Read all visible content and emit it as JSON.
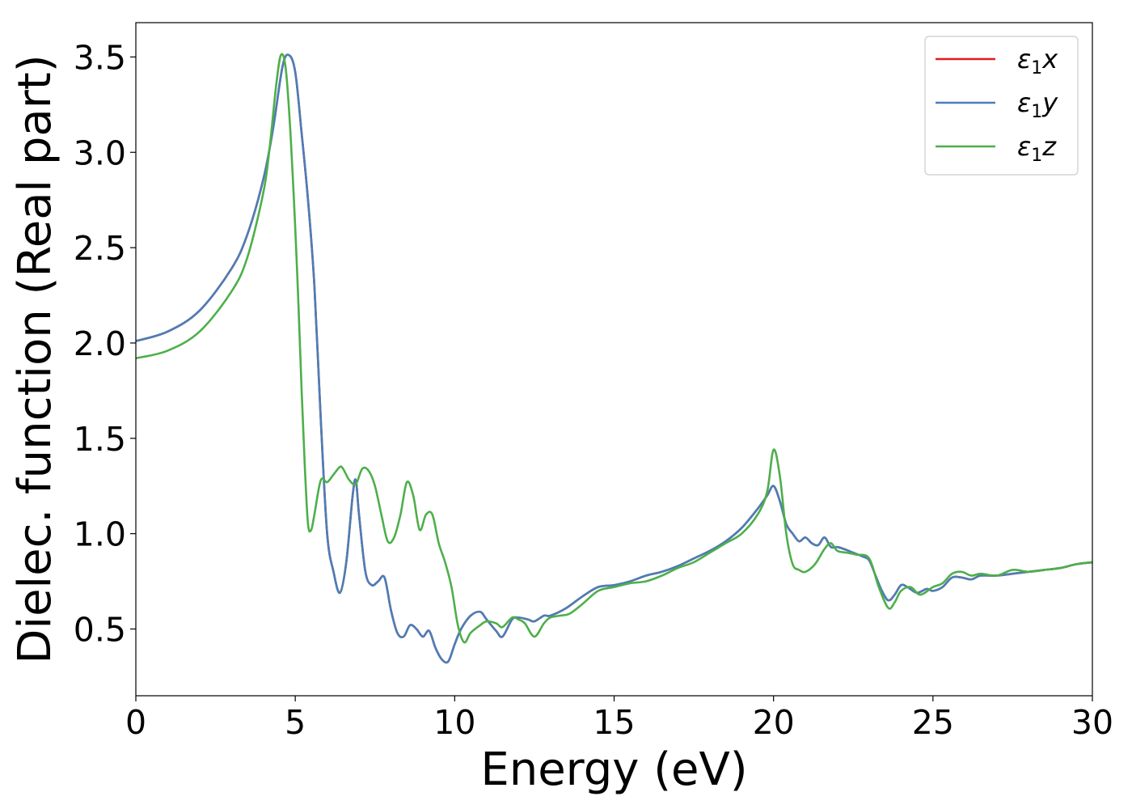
{
  "chart_data": {
    "type": "line",
    "title": "",
    "xlabel": "Energy (eV)",
    "ylabel": "Dielec. function (Real part)",
    "xlim": [
      0,
      30
    ],
    "ylim": [
      0.15,
      3.68
    ],
    "xticks": [
      0,
      5,
      10,
      15,
      20,
      25,
      30
    ],
    "yticks": [
      0.5,
      1.0,
      1.5,
      2.0,
      2.5,
      3.0,
      3.5
    ],
    "xtick_labels": [
      "0",
      "5",
      "10",
      "15",
      "20",
      "25",
      "30"
    ],
    "ytick_labels": [
      "0.5",
      "1.0",
      "1.5",
      "2.0",
      "2.5",
      "3.0",
      "3.5"
    ],
    "grid": false,
    "legend_position": "top-right",
    "series": [
      {
        "name": "ε1x",
        "legend_main": "ε",
        "legend_sub": "1",
        "legend_var": "x",
        "color": "#e41a1c",
        "x": [
          0,
          1,
          2,
          3,
          3.5,
          4,
          4.3,
          4.6,
          4.8,
          5.0,
          5.2,
          5.4,
          5.6,
          5.8,
          6.0,
          6.2,
          6.4,
          6.6,
          6.8,
          6.9,
          7.0,
          7.2,
          7.4,
          7.6,
          7.8,
          8.0,
          8.2,
          8.4,
          8.6,
          8.8,
          9.0,
          9.2,
          9.4,
          9.6,
          9.8,
          10.0,
          10.2,
          10.5,
          10.8,
          11.0,
          11.3,
          11.5,
          11.8,
          12.0,
          12.3,
          12.5,
          12.8,
          13.0,
          13.5,
          14.0,
          14.5,
          15.0,
          15.5,
          16.0,
          16.5,
          17.0,
          17.5,
          18.0,
          18.5,
          19.0,
          19.5,
          19.8,
          20.0,
          20.2,
          20.4,
          20.6,
          20.8,
          21.0,
          21.2,
          21.4,
          21.6,
          21.8,
          22.0,
          22.2,
          22.5,
          22.8,
          23.0,
          23.2,
          23.4,
          23.6,
          23.8,
          24.0,
          24.2,
          24.5,
          24.8,
          25.0,
          25.3,
          25.6,
          25.9,
          26.2,
          26.5,
          27.0,
          27.5,
          28.0,
          28.5,
          29.0,
          29.5,
          30.0
        ],
        "y": [
          2.01,
          2.06,
          2.17,
          2.39,
          2.57,
          2.86,
          3.12,
          3.45,
          3.51,
          3.42,
          3.1,
          2.75,
          2.3,
          1.6,
          1.0,
          0.8,
          0.69,
          0.85,
          1.2,
          1.28,
          1.1,
          0.8,
          0.73,
          0.75,
          0.77,
          0.6,
          0.48,
          0.46,
          0.52,
          0.5,
          0.46,
          0.49,
          0.4,
          0.34,
          0.33,
          0.42,
          0.5,
          0.57,
          0.59,
          0.55,
          0.49,
          0.46,
          0.55,
          0.56,
          0.55,
          0.54,
          0.57,
          0.57,
          0.61,
          0.67,
          0.72,
          0.73,
          0.75,
          0.78,
          0.8,
          0.83,
          0.87,
          0.91,
          0.96,
          1.03,
          1.13,
          1.2,
          1.25,
          1.17,
          1.05,
          1.0,
          0.96,
          0.98,
          0.95,
          0.94,
          0.98,
          0.93,
          0.93,
          0.92,
          0.9,
          0.88,
          0.86,
          0.78,
          0.7,
          0.65,
          0.68,
          0.73,
          0.72,
          0.69,
          0.71,
          0.7,
          0.72,
          0.77,
          0.77,
          0.76,
          0.78,
          0.78,
          0.79,
          0.8,
          0.81,
          0.82,
          0.84,
          0.85
        ]
      },
      {
        "name": "ε1y",
        "legend_main": "ε",
        "legend_sub": "1",
        "legend_var": "y",
        "color": "#4a7eb8",
        "x": [
          0,
          1,
          2,
          3,
          3.5,
          4,
          4.3,
          4.6,
          4.8,
          5.0,
          5.2,
          5.4,
          5.6,
          5.8,
          6.0,
          6.2,
          6.4,
          6.6,
          6.8,
          6.9,
          7.0,
          7.2,
          7.4,
          7.6,
          7.8,
          8.0,
          8.2,
          8.4,
          8.6,
          8.8,
          9.0,
          9.2,
          9.4,
          9.6,
          9.8,
          10.0,
          10.2,
          10.5,
          10.8,
          11.0,
          11.3,
          11.5,
          11.8,
          12.0,
          12.3,
          12.5,
          12.8,
          13.0,
          13.5,
          14.0,
          14.5,
          15.0,
          15.5,
          16.0,
          16.5,
          17.0,
          17.5,
          18.0,
          18.5,
          19.0,
          19.5,
          19.8,
          20.0,
          20.2,
          20.4,
          20.6,
          20.8,
          21.0,
          21.2,
          21.4,
          21.6,
          21.8,
          22.0,
          22.2,
          22.5,
          22.8,
          23.0,
          23.2,
          23.4,
          23.6,
          23.8,
          24.0,
          24.2,
          24.5,
          24.8,
          25.0,
          25.3,
          25.6,
          25.9,
          26.2,
          26.5,
          27.0,
          27.5,
          28.0,
          28.5,
          29.0,
          29.5,
          30.0
        ],
        "y": [
          2.01,
          2.06,
          2.17,
          2.39,
          2.57,
          2.86,
          3.12,
          3.45,
          3.51,
          3.42,
          3.1,
          2.75,
          2.3,
          1.6,
          1.0,
          0.8,
          0.69,
          0.85,
          1.2,
          1.28,
          1.1,
          0.8,
          0.73,
          0.75,
          0.77,
          0.6,
          0.48,
          0.46,
          0.52,
          0.5,
          0.46,
          0.49,
          0.4,
          0.34,
          0.33,
          0.42,
          0.5,
          0.57,
          0.59,
          0.55,
          0.49,
          0.46,
          0.55,
          0.56,
          0.55,
          0.54,
          0.57,
          0.57,
          0.61,
          0.67,
          0.72,
          0.73,
          0.75,
          0.78,
          0.8,
          0.83,
          0.87,
          0.91,
          0.96,
          1.03,
          1.13,
          1.2,
          1.25,
          1.17,
          1.05,
          1.0,
          0.96,
          0.98,
          0.95,
          0.94,
          0.98,
          0.93,
          0.93,
          0.92,
          0.9,
          0.88,
          0.86,
          0.78,
          0.7,
          0.65,
          0.68,
          0.73,
          0.72,
          0.69,
          0.71,
          0.7,
          0.72,
          0.77,
          0.77,
          0.76,
          0.78,
          0.78,
          0.79,
          0.8,
          0.81,
          0.82,
          0.84,
          0.85
        ]
      },
      {
        "name": "ε1z",
        "legend_main": "ε",
        "legend_sub": "1",
        "legend_var": "z",
        "color": "#4daf4a",
        "x": [
          0,
          1,
          2,
          3,
          3.5,
          4,
          4.2,
          4.4,
          4.55,
          4.7,
          4.85,
          5.0,
          5.1,
          5.2,
          5.3,
          5.4,
          5.5,
          5.6,
          5.8,
          6.0,
          6.2,
          6.4,
          6.5,
          6.7,
          6.9,
          7.1,
          7.3,
          7.5,
          7.7,
          7.9,
          8.1,
          8.3,
          8.5,
          8.7,
          8.9,
          9.1,
          9.3,
          9.5,
          9.7,
          9.9,
          10.1,
          10.3,
          10.5,
          10.8,
          11.0,
          11.3,
          11.5,
          11.8,
          12.0,
          12.2,
          12.5,
          12.8,
          13.0,
          13.3,
          13.6,
          14.0,
          14.5,
          15.0,
          15.5,
          16.0,
          16.5,
          17.0,
          17.5,
          18.0,
          18.5,
          19.0,
          19.5,
          19.8,
          20.0,
          20.2,
          20.4,
          20.6,
          20.8,
          21.0,
          21.3,
          21.6,
          21.8,
          22.0,
          22.3,
          22.6,
          23.0,
          23.3,
          23.6,
          23.8,
          24.0,
          24.3,
          24.6,
          25.0,
          25.3,
          25.6,
          25.9,
          26.2,
          26.5,
          27.0,
          27.5,
          28.0,
          28.5,
          29.0,
          29.5,
          30.0
        ],
        "y": [
          1.92,
          1.96,
          2.06,
          2.27,
          2.45,
          2.79,
          3.03,
          3.35,
          3.51,
          3.44,
          3.1,
          2.6,
          2.2,
          1.75,
          1.35,
          1.05,
          1.02,
          1.1,
          1.28,
          1.27,
          1.31,
          1.35,
          1.34,
          1.28,
          1.26,
          1.34,
          1.33,
          1.25,
          1.1,
          0.96,
          0.98,
          1.1,
          1.27,
          1.2,
          1.02,
          1.1,
          1.1,
          0.95,
          0.85,
          0.72,
          0.52,
          0.43,
          0.48,
          0.52,
          0.54,
          0.53,
          0.51,
          0.56,
          0.55,
          0.53,
          0.46,
          0.53,
          0.56,
          0.57,
          0.58,
          0.63,
          0.7,
          0.72,
          0.74,
          0.75,
          0.78,
          0.82,
          0.85,
          0.9,
          0.95,
          1.0,
          1.1,
          1.22,
          1.44,
          1.3,
          1.0,
          0.84,
          0.81,
          0.8,
          0.84,
          0.92,
          0.95,
          0.91,
          0.9,
          0.89,
          0.87,
          0.72,
          0.61,
          0.64,
          0.7,
          0.72,
          0.68,
          0.72,
          0.74,
          0.79,
          0.8,
          0.78,
          0.79,
          0.78,
          0.81,
          0.8,
          0.81,
          0.82,
          0.84,
          0.85
        ]
      }
    ]
  }
}
